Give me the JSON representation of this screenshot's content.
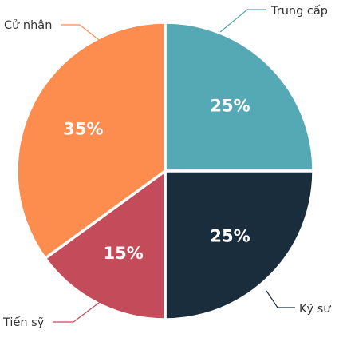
{
  "chart_data": {
    "type": "pie",
    "title": "",
    "slices": [
      {
        "label": "Trung cấp",
        "value": 25,
        "display": "25%",
        "color": "#55a9b4"
      },
      {
        "label": "Kỹ sư",
        "value": 25,
        "display": "25%",
        "color": "#1a2d3c"
      },
      {
        "label": "Tiến sỹ",
        "value": 15,
        "display": "15%",
        "color": "#c34b5a"
      },
      {
        "label": "Cử nhân",
        "value": 35,
        "display": "35%",
        "color": "#fd8d4f"
      }
    ],
    "start_angle": "12 o'clock",
    "direction": "clockwise",
    "legend": "none (callout labels)"
  }
}
